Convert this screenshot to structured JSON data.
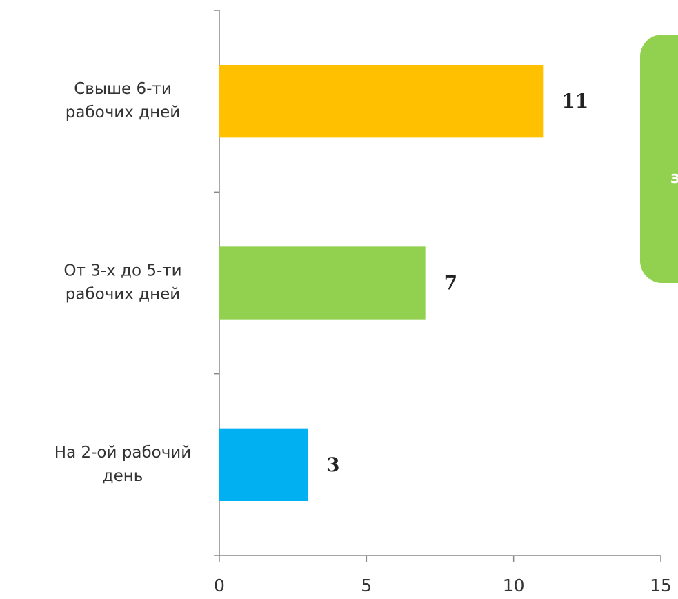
{
  "chart_data": {
    "type": "bar",
    "orientation": "horizontal",
    "categories": [
      [
        "Свыше  6-ти",
        "рабочих дней"
      ],
      [
        "От 3-х до 5-ти",
        "рабочих дней"
      ],
      [
        "На 2-ой рабочий",
        "день"
      ]
    ],
    "values": [
      11,
      7,
      3
    ],
    "colors": [
      "#ffc000",
      "#92d050",
      "#00b0f0"
    ],
    "xlim": [
      0,
      15
    ],
    "xticks": [
      0,
      5,
      10,
      15
    ],
    "annotation": "з"
  }
}
